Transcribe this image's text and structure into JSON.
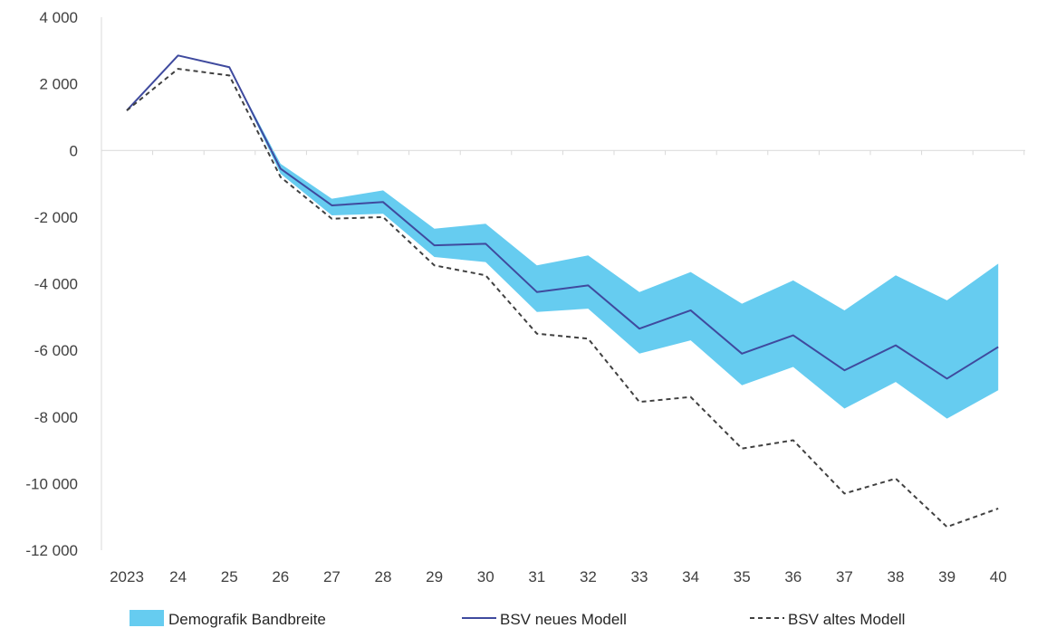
{
  "chart_data": {
    "type": "line",
    "categories": [
      "2023",
      "24",
      "25",
      "26",
      "27",
      "28",
      "29",
      "30",
      "31",
      "32",
      "33",
      "34",
      "35",
      "36",
      "37",
      "38",
      "39",
      "40"
    ],
    "ylim": [
      -12000,
      4000
    ],
    "yticks": [
      4000,
      2000,
      0,
      -2000,
      -4000,
      -6000,
      -8000,
      -10000,
      -12000
    ],
    "ytick_labels": [
      "4 000",
      "2 000",
      "0",
      "-2 000",
      "-4 000",
      "-6 000",
      "-8 000",
      "-10 000",
      "-12 000"
    ],
    "grid": false,
    "legend_position": "bottom",
    "band": {
      "name": "Demografik Bandbreite",
      "color": "#66CCF0",
      "lower": [
        1200,
        2850,
        2500,
        -700,
        -1950,
        -1900,
        -3200,
        -3350,
        -4850,
        -4750,
        -6100,
        -5700,
        -7050,
        -6500,
        -7750,
        -6950,
        -8050,
        -7200
      ],
      "upper": [
        1200,
        2850,
        2500,
        -400,
        -1450,
        -1200,
        -2350,
        -2200,
        -3450,
        -3150,
        -4250,
        -3650,
        -4600,
        -3900,
        -4800,
        -3750,
        -4500,
        -3400
      ]
    },
    "series": [
      {
        "name": "BSV neues Modell",
        "color": "#3F4A9E",
        "style": "solid",
        "values": [
          1200,
          2850,
          2500,
          -550,
          -1650,
          -1550,
          -2850,
          -2800,
          -4250,
          -4050,
          -5350,
          -4800,
          -6100,
          -5550,
          -6600,
          -5850,
          -6850,
          -5900
        ]
      },
      {
        "name": "BSV altes Modell",
        "color": "#404040",
        "style": "dashed",
        "values": [
          1200,
          2450,
          2250,
          -800,
          -2050,
          -2000,
          -3450,
          -3750,
          -5500,
          -5650,
          -7550,
          -7400,
          -8950,
          -8700,
          -10300,
          -9850,
          -11300,
          -10750
        ]
      }
    ]
  }
}
